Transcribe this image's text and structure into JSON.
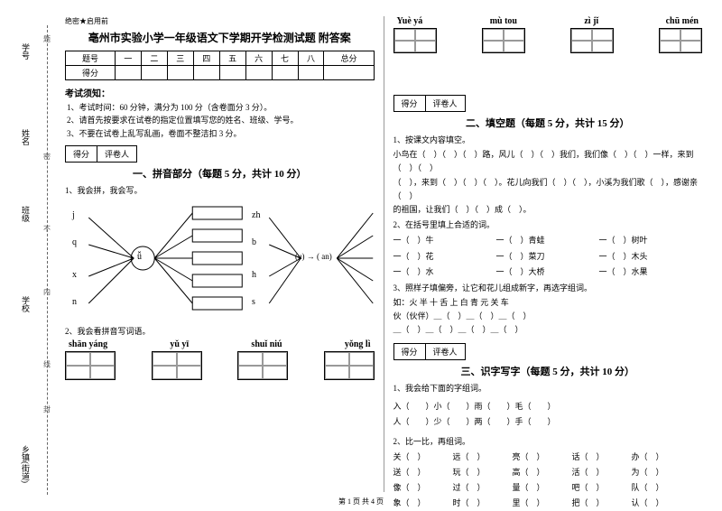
{
  "margin": {
    "l1": "学号",
    "l2": "姓名",
    "l3": "班级",
    "l4": "学校",
    "l5": "乡镇(街道)",
    "marks": [
      "题",
      "密",
      "不",
      "内",
      "线",
      "封"
    ]
  },
  "secret": "绝密★启用前",
  "title": "亳州市实验小学一年级语文下学期开学检测试题 附答案",
  "scoreTable": {
    "row1": [
      "题号",
      "一",
      "二",
      "三",
      "四",
      "五",
      "六",
      "七",
      "八",
      "总分"
    ],
    "row2": [
      "得分",
      "",
      "",
      "",
      "",
      "",
      "",
      "",
      "",
      ""
    ]
  },
  "noticeHead": "考试须知：",
  "notices": [
    "1、考试时间：60 分钟，满分为 100 分（含卷面分 3 分）。",
    "2、请首先按要求在试卷的指定位置填写您的姓名、班级、学号。",
    "3、不要在试卷上乱写乱画，卷面不整洁扣 3 分。"
  ],
  "scorebox": {
    "a": "得分",
    "b": "评卷人"
  },
  "sec1": "一、拼音部分（每题 5 分，共计 10 分）",
  "q1_1": "1、我会拼，我会写。",
  "diagram": {
    "left": [
      "j",
      "q",
      "x",
      "n"
    ],
    "mid": "ǚ",
    "rightMid": "(u) → ( an)",
    "right": [
      "zh",
      "b",
      "h",
      "s"
    ]
  },
  "q1_2": "2、我会看拼音写词语。",
  "pinyin1": [
    "shān yáng",
    "yǔ yī",
    "shuǐ niú",
    "yǒng lì"
  ],
  "pinyin2": [
    "Yuè yá",
    "mù tou",
    "zì jǐ",
    "chū mén"
  ],
  "sec2": "二、填空题（每题 5 分，共计 15 分）",
  "q2_1": "1、按课文内容填空。",
  "fill": [
    "小鸟在（　）（　）（　）路，风儿（　）（　）我们，我们像（　）（　）一样，来到（　）（　）",
    "（　），来到（　）（　）（　）。花儿向我们（　）（　），小溪为我们歌（　），感谢亲（　）",
    "的祖国，让我们（　）（　）成（　）。"
  ],
  "q2_2": "2、在括号里填上合适的词。",
  "pairs": [
    [
      "一（　）牛",
      "一（　）青蛙",
      "一（　）树叶"
    ],
    [
      "一（　）花",
      "一（　）菜刀",
      "一（　）木头"
    ],
    [
      "一（　）水",
      "一（　）大桥",
      "一（　）水果"
    ]
  ],
  "q2_3": "3、照样子填偏旁，让它和花儿组成新字，再选字组词。",
  "q2_3a": "如：火 半 十 舌 上 白 青 元 关 车",
  "q2_3b": [
    "伙（伙伴）＿（　）＿（　）＿（　）",
    "＿（　）＿（　）＿（　）＿（　）"
  ],
  "sec3": "三、识字写字（每题 5 分，共计 10 分）",
  "q3_1": "1、我会给下面的字组词。",
  "groups1": [
    "入（　　）小（　　）雨（　　）毛（　　）",
    "人（　　）少（　　）两（　　）手（　　）"
  ],
  "q3_2": "2、比一比，再组词。",
  "pairs2": [
    [
      "关（　）",
      "远（　）",
      "亮（　）",
      "话（　）",
      "办（　）"
    ],
    [
      "送（　）",
      "玩（　）",
      "高（　）",
      "活（　）",
      "为（　）"
    ],
    [
      "像（　）",
      "过（　）",
      "量（　）",
      "吧（　）",
      "队（　）"
    ],
    [
      "象（　）",
      "时（　）",
      "里（　）",
      "把（　）",
      "认（　）"
    ]
  ],
  "footer": "第 1 页 共 4 页"
}
